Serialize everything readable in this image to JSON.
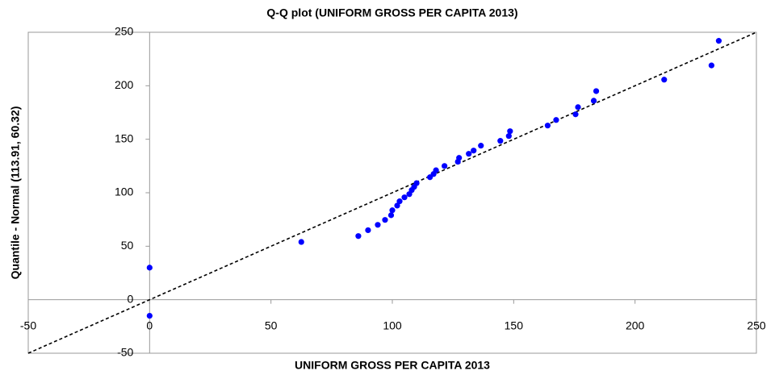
{
  "chart_data": {
    "type": "scatter",
    "title": "Q-Q plot (UNIFORM GROSS PER CAPITA 2013)",
    "x_label": "UNIFORM GROSS PER CAPITA 2013",
    "y_label": "Quantile - Normal (113.91, 60.32)",
    "series": [
      {
        "color": "#0000ff",
        "x": [
          0,
          0,
          62.5,
          86,
          90,
          94,
          97,
          99.5,
          100,
          102,
          103,
          105,
          107,
          108,
          109,
          110,
          115.5,
          117,
          118,
          121.5,
          127,
          127.5,
          131.5,
          133.5,
          136.5,
          144.5,
          148,
          148.5,
          164,
          167.5,
          175.5,
          176.5,
          183,
          184,
          212,
          231.5,
          234.5
        ],
        "values": [
          30,
          -15,
          54,
          59.5,
          65,
          70,
          74.6,
          79,
          83.6,
          88,
          92,
          95.7,
          98.7,
          102.5,
          105.5,
          109,
          114.5,
          117.5,
          121,
          125,
          129,
          132.6,
          136.4,
          139.4,
          144,
          148.5,
          153,
          157.5,
          162.8,
          168,
          173.3,
          180,
          186,
          195,
          205.7,
          219,
          242
        ]
      }
    ],
    "reference_line": {
      "x": [
        -50,
        250
      ],
      "values": [
        -50,
        250
      ]
    },
    "xlim": [
      -50,
      250
    ],
    "ylim": [
      -50,
      250
    ],
    "xticks": [
      -50,
      0,
      50,
      100,
      150,
      200,
      250
    ],
    "yticks": [
      -50,
      0,
      50,
      100,
      150,
      200,
      250
    ]
  }
}
